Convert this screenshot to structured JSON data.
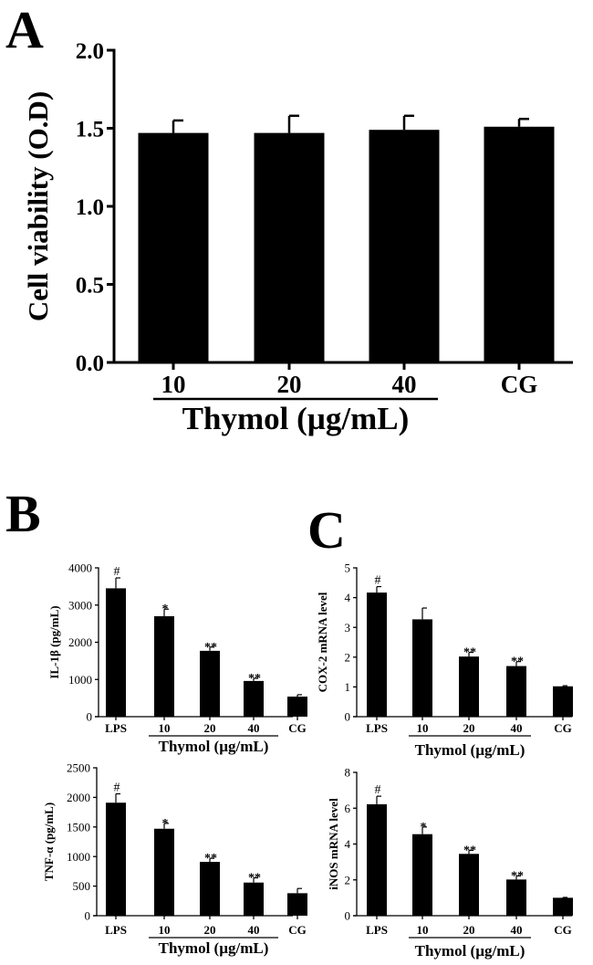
{
  "figure": {
    "panel_labels": [
      "A",
      "B",
      "C"
    ],
    "colors": {
      "bar": "#000000",
      "axis": "#000000",
      "background": "#ffffff"
    }
  },
  "chart_data": [
    {
      "id": "A",
      "type": "bar",
      "title": "",
      "ylabel": "Cell viability (O.D)",
      "xlabel": "Thymol (µg/mL)",
      "categories": [
        "10",
        "20",
        "40",
        "CG"
      ],
      "values": [
        1.47,
        1.47,
        1.49,
        1.51
      ],
      "errors": [
        0.08,
        0.11,
        0.09,
        0.05
      ],
      "significance": [
        "",
        "",
        "",
        ""
      ],
      "ylim": [
        0,
        2.0
      ],
      "yticks": [
        "0.0",
        "0.5",
        "1.0",
        "1.5",
        "2.0"
      ],
      "group_label": "Thymol (µg/mL)",
      "group_range": [
        0,
        2
      ]
    },
    {
      "id": "B-top",
      "type": "bar",
      "title": "",
      "ylabel": "IL-1β  (pg/mL)",
      "xlabel": "Thymol (µg/mL)",
      "categories": [
        "LPS",
        "10",
        "20",
        "40",
        "CG"
      ],
      "values": [
        3450,
        2700,
        1770,
        960,
        540
      ],
      "errors": [
        280,
        190,
        100,
        70,
        50
      ],
      "significance": [
        "#",
        "*",
        "**",
        "**",
        ""
      ],
      "ylim": [
        0,
        4000
      ],
      "yticks": [
        "0",
        "1000",
        "2000",
        "3000",
        "4000"
      ],
      "group_label": "Thymol (µg/mL)",
      "group_range": [
        1,
        3
      ]
    },
    {
      "id": "C-top",
      "type": "bar",
      "title": "",
      "ylabel": "COX-2 mRNA level",
      "xlabel": "Thymol (µg/mL)",
      "categories": [
        "LPS",
        "10",
        "20",
        "40",
        "CG"
      ],
      "values": [
        4.17,
        3.27,
        2.02,
        1.7,
        1.02
      ],
      "errors": [
        0.2,
        0.38,
        0.14,
        0.15,
        0.02
      ],
      "significance": [
        "#",
        "",
        "**",
        "**",
        ""
      ],
      "ylim": [
        0,
        5
      ],
      "yticks": [
        "0",
        "1",
        "2",
        "3",
        "4",
        "5"
      ],
      "group_label": "Thymol (µg/mL)",
      "group_range": [
        1,
        3
      ]
    },
    {
      "id": "B-bottom",
      "type": "bar",
      "title": "",
      "ylabel": "TNF-α  (pg/mL)",
      "xlabel": "Thymol (µg/mL)",
      "categories": [
        "LPS",
        "10",
        "20",
        "40",
        "CG"
      ],
      "values": [
        1910,
        1470,
        910,
        560,
        380
      ],
      "errors": [
        150,
        90,
        60,
        80,
        80
      ],
      "significance": [
        "#",
        "*",
        "**",
        "**",
        ""
      ],
      "ylim": [
        0,
        2500
      ],
      "yticks": [
        "0",
        "500",
        "1000",
        "1500",
        "2000",
        "2500"
      ],
      "group_label": "Thymol (µg/mL)",
      "group_range": [
        1,
        3
      ]
    },
    {
      "id": "C-bottom",
      "type": "bar",
      "title": "",
      "ylabel": "iNOS mRNA level",
      "xlabel": "Thymol (µg/mL)",
      "categories": [
        "LPS",
        "10",
        "20",
        "40",
        "CG"
      ],
      "values": [
        6.22,
        4.55,
        3.45,
        2.02,
        1.0
      ],
      "errors": [
        0.45,
        0.4,
        0.2,
        0.2,
        0.02
      ],
      "significance": [
        "#",
        "*",
        "**",
        "**",
        ""
      ],
      "ylim": [
        0,
        8
      ],
      "yticks": [
        "0",
        "2",
        "4",
        "6",
        "8"
      ],
      "group_label": "Thymol (µg/mL)",
      "group_range": [
        1,
        3
      ]
    }
  ]
}
